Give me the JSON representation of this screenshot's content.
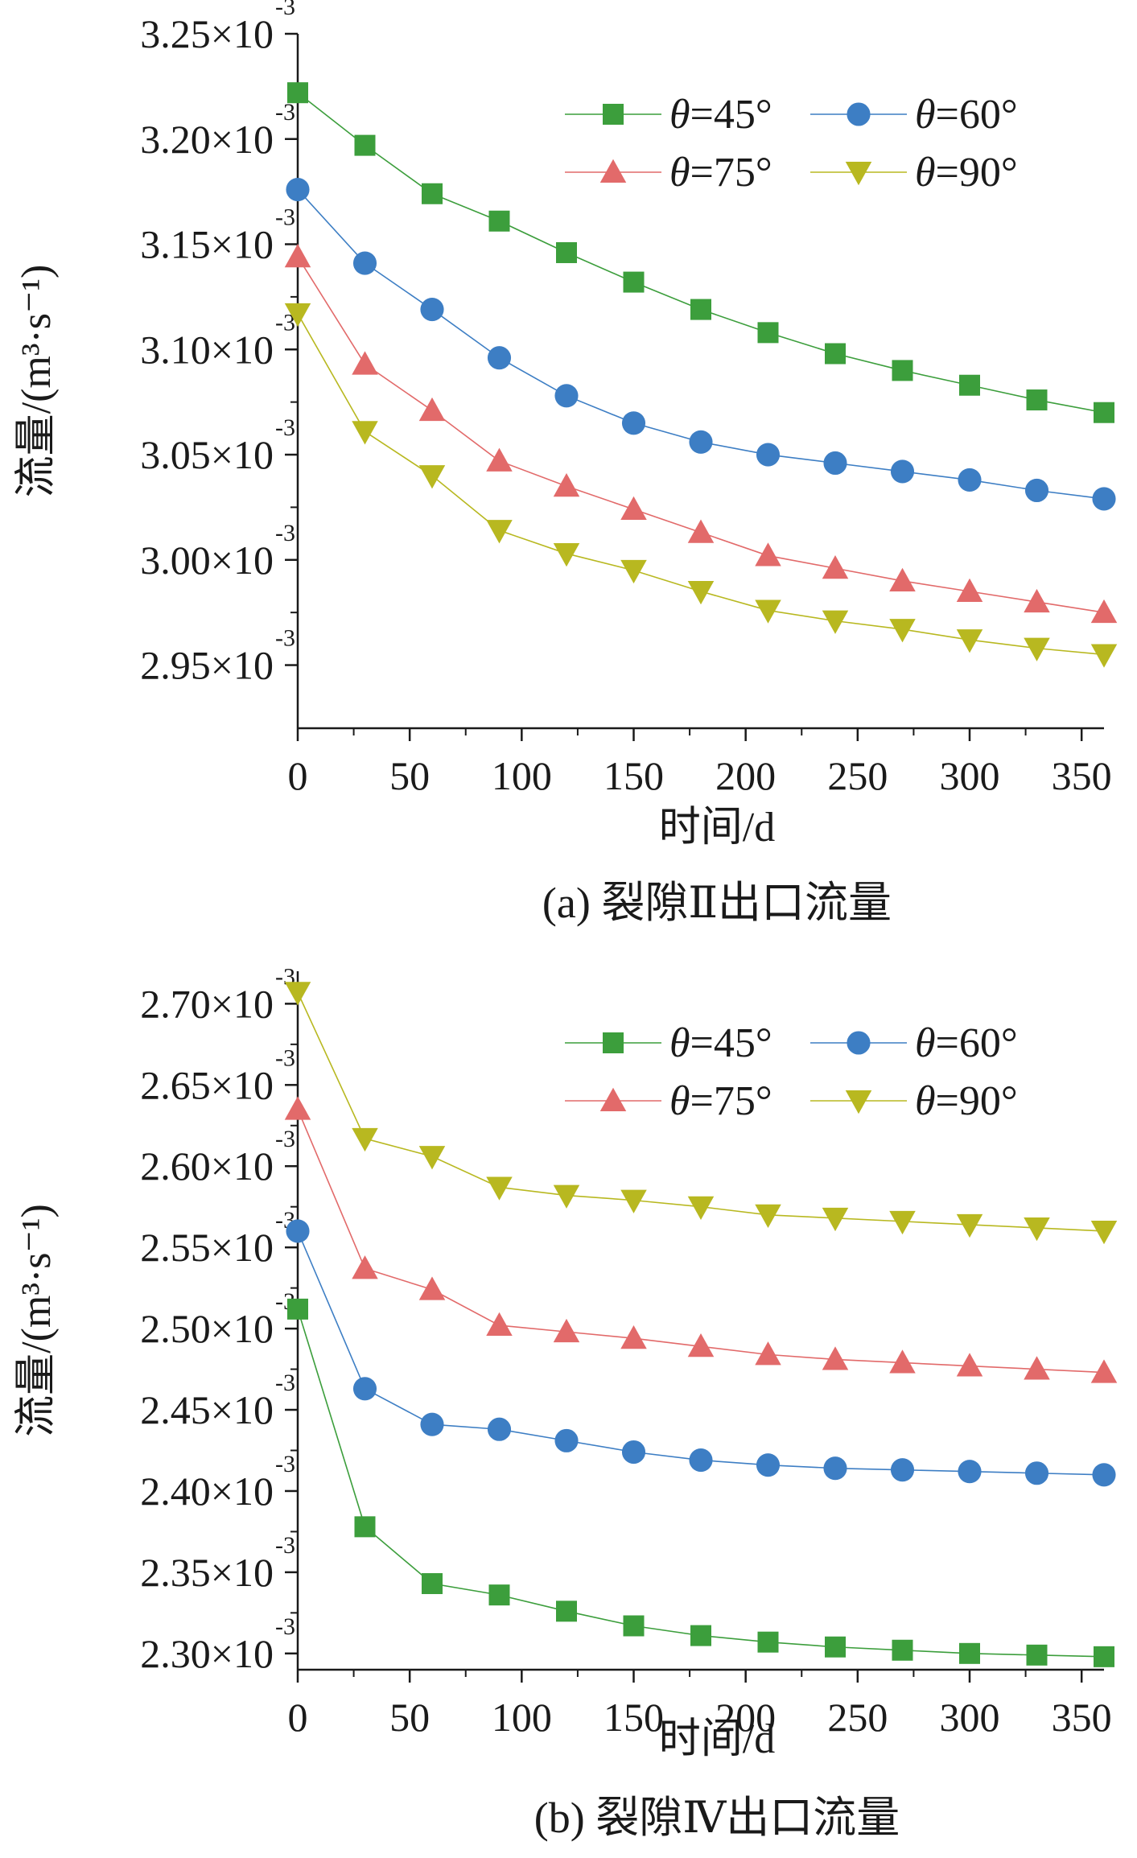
{
  "colors": {
    "s45": "#3c9e3c",
    "s60": "#3d7ec4",
    "s75": "#e26a6a",
    "s90": "#b8b820",
    "axis": "#1a1a1a"
  },
  "chart_data": [
    {
      "type": "line",
      "caption": "(a) 裂隙Ⅱ出口流量",
      "xlabel": "时间/d",
      "ylabel": "流量/(m³·s⁻¹)",
      "xlim": [
        0,
        360
      ],
      "ylim": [
        2.92,
        3.25
      ],
      "x_ticks": [
        0,
        50,
        100,
        150,
        200,
        250,
        300,
        350
      ],
      "y_ticks": [
        2.95,
        3.0,
        3.05,
        3.1,
        3.15,
        3.2,
        3.25
      ],
      "y_tick_mantissas": [
        "2.95",
        "3.00",
        "3.05",
        "3.10",
        "3.15",
        "3.20",
        "3.25"
      ],
      "y_tick_multiplier": "×10",
      "y_tick_exponent": "-3",
      "legend_position": "top-right",
      "x": [
        0,
        30,
        60,
        90,
        120,
        150,
        180,
        210,
        240,
        270,
        300,
        330,
        360
      ],
      "series": [
        {
          "name": "θ=45°",
          "marker": "square",
          "color_key": "s45",
          "values": [
            3.222,
            3.197,
            3.174,
            3.161,
            3.146,
            3.132,
            3.119,
            3.108,
            3.098,
            3.09,
            3.083,
            3.076,
            3.07
          ]
        },
        {
          "name": "θ=60°",
          "marker": "circle",
          "color_key": "s60",
          "values": [
            3.176,
            3.141,
            3.119,
            3.096,
            3.078,
            3.065,
            3.056,
            3.05,
            3.046,
            3.042,
            3.038,
            3.033,
            3.029
          ]
        },
        {
          "name": "θ=75°",
          "marker": "triangle-up",
          "color_key": "s75",
          "values": [
            3.144,
            3.093,
            3.071,
            3.047,
            3.035,
            3.024,
            3.013,
            3.002,
            2.996,
            2.99,
            2.985,
            2.98,
            2.975
          ]
        },
        {
          "name": "θ=90°",
          "marker": "triangle-down",
          "color_key": "s90",
          "values": [
            3.117,
            3.061,
            3.04,
            3.014,
            3.003,
            2.995,
            2.985,
            2.976,
            2.971,
            2.967,
            2.962,
            2.958,
            2.955
          ]
        }
      ]
    },
    {
      "type": "line",
      "caption": "(b) 裂隙Ⅳ出口流量",
      "xlabel": "时间/d",
      "ylabel": "流量/(m³·s⁻¹)",
      "xlim": [
        0,
        360
      ],
      "ylim": [
        2.29,
        2.72
      ],
      "x_ticks": [
        0,
        50,
        100,
        150,
        200,
        250,
        300,
        350
      ],
      "y_ticks": [
        2.3,
        2.35,
        2.4,
        2.45,
        2.5,
        2.55,
        2.6,
        2.65,
        2.7
      ],
      "y_tick_mantissas": [
        "2.30",
        "2.35",
        "2.40",
        "2.45",
        "2.50",
        "2.55",
        "2.60",
        "2.65",
        "2.70"
      ],
      "y_tick_multiplier": "×10",
      "y_tick_exponent": "-3",
      "legend_position": "top-right",
      "x": [
        0,
        30,
        60,
        90,
        120,
        150,
        180,
        210,
        240,
        270,
        300,
        330,
        360
      ],
      "series": [
        {
          "name": "θ=45°",
          "marker": "square",
          "color_key": "s45",
          "values": [
            2.512,
            2.378,
            2.343,
            2.336,
            2.326,
            2.317,
            2.311,
            2.307,
            2.304,
            2.302,
            2.3,
            2.299,
            2.298
          ]
        },
        {
          "name": "θ=60°",
          "marker": "circle",
          "color_key": "s60",
          "values": [
            2.56,
            2.463,
            2.441,
            2.438,
            2.431,
            2.424,
            2.419,
            2.416,
            2.414,
            2.413,
            2.412,
            2.411,
            2.41
          ]
        },
        {
          "name": "θ=75°",
          "marker": "triangle-up",
          "color_key": "s75",
          "values": [
            2.635,
            2.537,
            2.524,
            2.502,
            2.498,
            2.494,
            2.489,
            2.484,
            2.481,
            2.479,
            2.477,
            2.475,
            2.473
          ]
        },
        {
          "name": "θ=90°",
          "marker": "triangle-down",
          "color_key": "s90",
          "values": [
            2.707,
            2.617,
            2.606,
            2.587,
            2.582,
            2.579,
            2.575,
            2.57,
            2.568,
            2.566,
            2.564,
            2.562,
            2.56
          ]
        }
      ]
    }
  ]
}
